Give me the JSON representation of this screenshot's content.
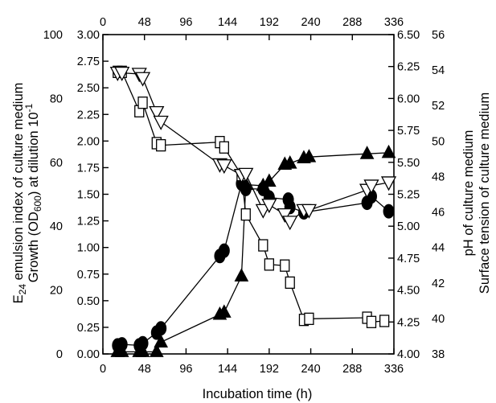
{
  "chart_data": {
    "type": "scatter",
    "title": "",
    "xlabel": "Incubation time (h)",
    "xlim": [
      0,
      336
    ],
    "xticks": [
      0,
      48,
      96,
      144,
      192,
      240,
      288,
      336
    ],
    "ylabel_left_outer": "E24 emulsion index of culture medium",
    "ylabel_left_inner": "Growth (OD600) at dilution 10-1",
    "ylabel_right_inner": "pH of culture medium",
    "ylabel_right_outer": "Surface tension of culture medium",
    "y_axes": {
      "e24": {
        "range": [
          0,
          100
        ],
        "ticks": [
          "0",
          "20",
          "40",
          "60",
          "80",
          "100"
        ]
      },
      "od": {
        "range": [
          0,
          3
        ],
        "ticks": [
          "0.00",
          "0.25",
          "0.50",
          "0.75",
          "1.00",
          "1.25",
          "1.50",
          "1.75",
          "2.00",
          "2.25",
          "2.50",
          "2.75",
          "3.00"
        ]
      },
      "ph": {
        "range": [
          4.0,
          6.5
        ],
        "ticks": [
          "4.00",
          "4.25",
          "4.50",
          "4.75",
          "5.00",
          "5.25",
          "5.50",
          "5.75",
          "6.00",
          "6.25",
          "6.50"
        ]
      },
      "surface_tension": {
        "range": [
          38,
          56
        ],
        "ticks": [
          "38",
          "40",
          "42",
          "44",
          "46",
          "48",
          "50",
          "52",
          "54",
          "56"
        ]
      }
    },
    "series": [
      {
        "marker": "circle",
        "axis": "od",
        "points": [
          [
            17,
            0.08
          ],
          [
            22,
            0.09
          ],
          [
            42,
            0.08
          ],
          [
            46,
            0.1
          ],
          [
            62,
            0.2
          ],
          [
            67,
            0.24
          ],
          [
            135,
            0.92
          ],
          [
            140,
            0.97
          ],
          [
            160,
            1.6
          ],
          [
            165,
            1.55
          ],
          [
            185,
            1.55
          ],
          [
            192,
            1.47
          ],
          [
            214,
            1.45
          ],
          [
            216,
            1.38
          ],
          [
            232,
            1.33
          ],
          [
            305,
            1.42
          ],
          [
            310,
            1.48
          ],
          [
            330,
            1.34
          ]
        ]
      },
      {
        "marker": "triangle-up",
        "axis": "od",
        "points": [
          [
            17,
            0.02
          ],
          [
            22,
            0.02
          ],
          [
            42,
            0.02
          ],
          [
            46,
            0.02
          ],
          [
            62,
            0.02
          ],
          [
            67,
            0.11
          ],
          [
            135,
            0.37
          ],
          [
            140,
            0.39
          ],
          [
            160,
            0.73
          ],
          [
            165,
            1.59
          ],
          [
            185,
            1.58
          ],
          [
            192,
            1.62
          ],
          [
            210,
            1.78
          ],
          [
            216,
            1.79
          ],
          [
            232,
            1.84
          ],
          [
            238,
            1.85
          ],
          [
            305,
            1.88
          ],
          [
            330,
            1.89
          ]
        ]
      },
      {
        "marker": "square",
        "axis": "od",
        "points": [
          [
            17,
            2.65
          ],
          [
            22,
            2.65
          ],
          [
            42,
            2.28
          ],
          [
            46,
            2.36
          ],
          [
            62,
            1.98
          ],
          [
            67,
            1.96
          ],
          [
            135,
            1.99
          ],
          [
            140,
            1.94
          ],
          [
            160,
            1.68
          ],
          [
            165,
            1.31
          ],
          [
            185,
            1.02
          ],
          [
            192,
            0.84
          ],
          [
            210,
            0.83
          ],
          [
            216,
            0.67
          ],
          [
            232,
            0.32
          ],
          [
            238,
            0.33
          ],
          [
            305,
            0.34
          ],
          [
            310,
            0.3
          ],
          [
            325,
            0.31
          ]
        ]
      },
      {
        "marker": "triangle-down",
        "axis": "od",
        "points": [
          [
            17,
            2.64
          ],
          [
            22,
            2.64
          ],
          [
            42,
            2.63
          ],
          [
            46,
            2.59
          ],
          [
            62,
            2.27
          ],
          [
            67,
            2.18
          ],
          [
            135,
            1.78
          ],
          [
            140,
            1.77
          ],
          [
            160,
            1.68
          ],
          [
            165,
            1.69
          ],
          [
            185,
            1.35
          ],
          [
            192,
            1.4
          ],
          [
            210,
            1.31
          ],
          [
            216,
            1.24
          ],
          [
            232,
            1.35
          ],
          [
            238,
            1.35
          ],
          [
            305,
            1.54
          ],
          [
            310,
            1.58
          ],
          [
            330,
            1.61
          ]
        ]
      }
    ],
    "grid": false,
    "legend": "none"
  }
}
